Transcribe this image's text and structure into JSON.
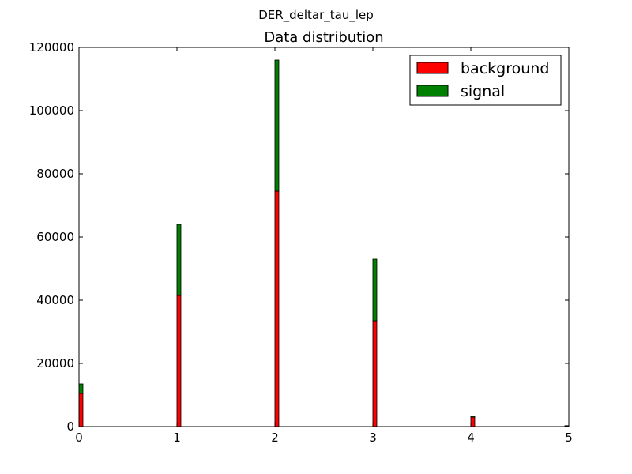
{
  "figure": {
    "suptitle": "DER_deltar_tau_lep"
  },
  "chart_data": {
    "type": "bar",
    "stacked": true,
    "title": "Data distribution",
    "xlabel": "",
    "ylabel": "",
    "xlim": [
      0,
      5
    ],
    "ylim": [
      0,
      120000
    ],
    "xticks": [
      "0",
      "1",
      "2",
      "3",
      "4",
      "5"
    ],
    "yticks": [
      "0",
      "20000",
      "40000",
      "60000",
      "80000",
      "100000",
      "120000"
    ],
    "x": [
      0.02,
      1.02,
      2.02,
      3.02,
      4.02,
      5.0
    ],
    "series": [
      {
        "name": "background",
        "color": "#ff0000",
        "values": [
          10500,
          41500,
          74500,
          33500,
          3000,
          200
        ]
      },
      {
        "name": "signal",
        "color": "#008000",
        "values": [
          3000,
          22500,
          41500,
          19500,
          300,
          100
        ]
      }
    ],
    "legend_position": "top-right",
    "grid": false
  }
}
